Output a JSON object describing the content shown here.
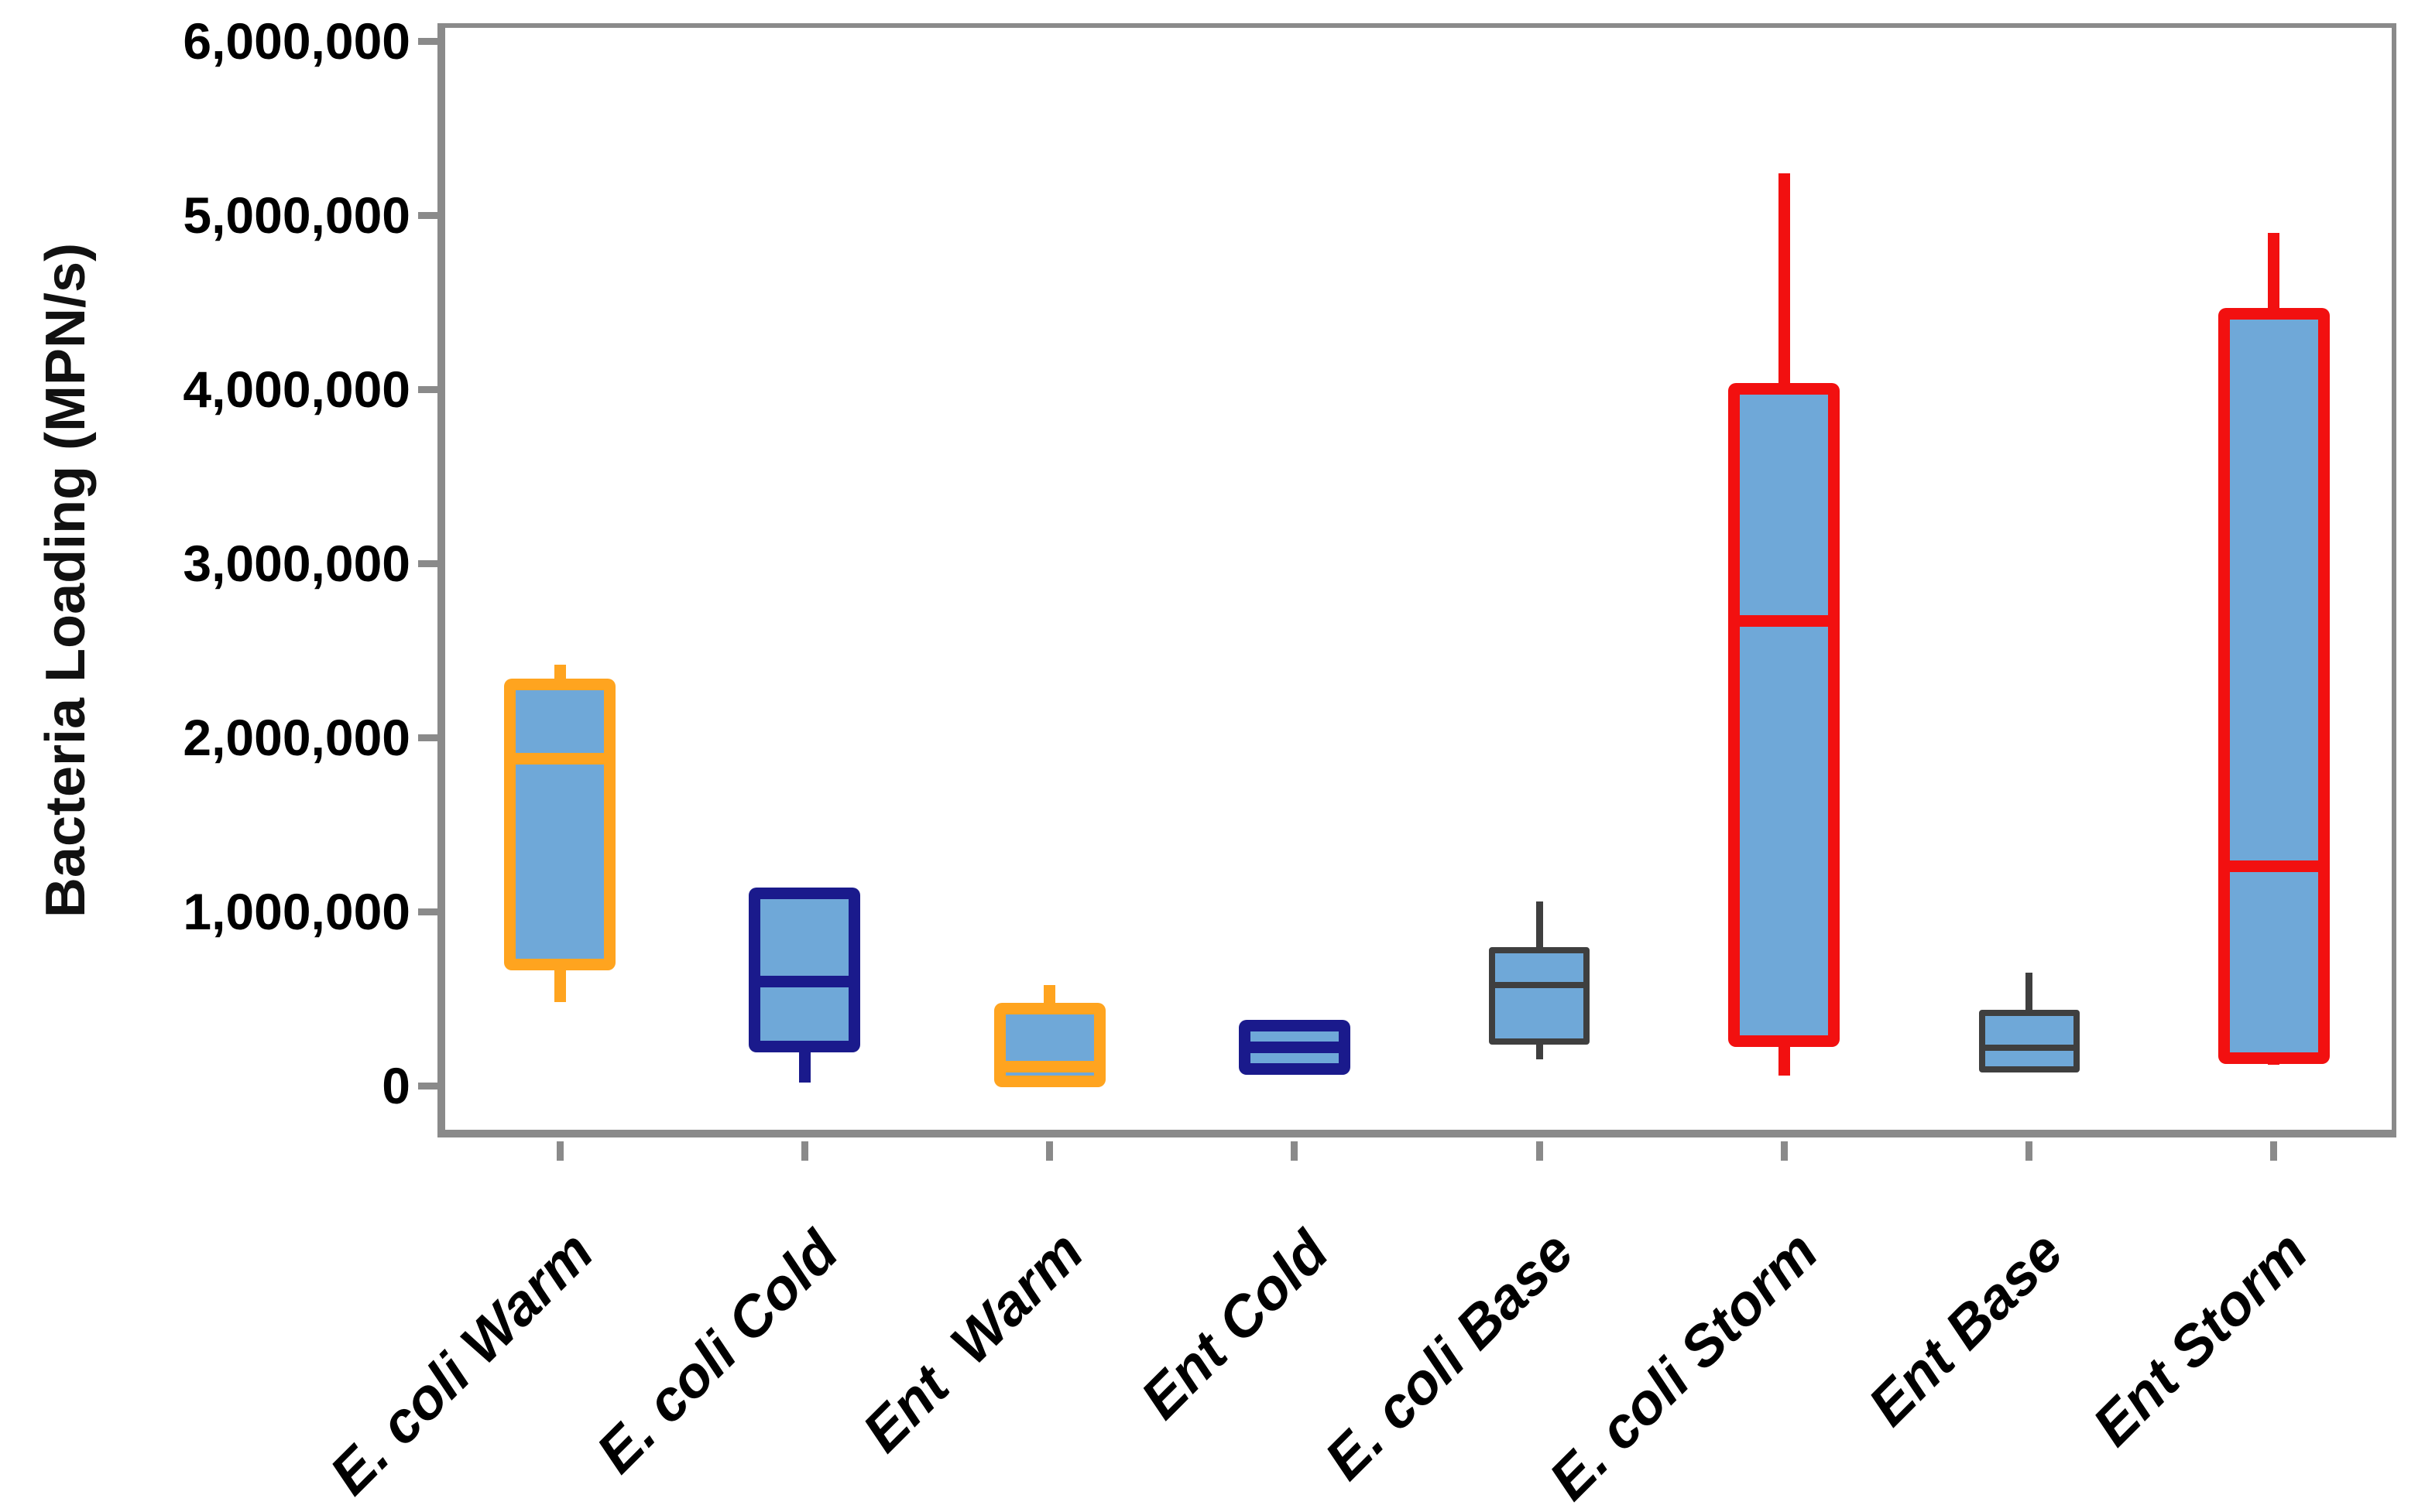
{
  "chart_data": {
    "type": "box",
    "title": "",
    "xlabel": "",
    "ylabel": "Bacteria Loading (MPN/s)",
    "ylim": [
      0,
      6000000
    ],
    "grid": false,
    "legend": null,
    "yticks": [
      {
        "value": 0,
        "label": "0"
      },
      {
        "value": 1000000,
        "label": "1,000,000"
      },
      {
        "value": 2000000,
        "label": "2,000,000"
      },
      {
        "value": 3000000,
        "label": "3,000,000"
      },
      {
        "value": 4000000,
        "label": "4,000,000"
      },
      {
        "value": 5000000,
        "label": "5,000,000"
      },
      {
        "value": 6000000,
        "label": "6,000,000"
      }
    ],
    "categories": [
      "E. coli Warm",
      "E. coli Cold",
      "Ent  Warm",
      "Ent Cold",
      "E. coli Base",
      "E. coli Storm",
      "Ent Base",
      "Ent Storm"
    ],
    "series": [
      {
        "label": "E. coli Warm",
        "group": "warm",
        "min": 480000,
        "q1": 730000,
        "median": 1880000,
        "q3": 2270000,
        "max": 2420000
      },
      {
        "label": "E. coli Cold",
        "group": "cold",
        "min": 20000,
        "q1": 260000,
        "median": 600000,
        "q3": 1070000,
        "max": 1070000
      },
      {
        "label": "Ent  Warm",
        "group": "warm",
        "min": 30000,
        "q1": 60000,
        "median": 110000,
        "q3": 410000,
        "max": 580000
      },
      {
        "label": "Ent Cold",
        "group": "cold",
        "min": 130000,
        "q1": 130000,
        "median": 220000,
        "q3": 310000,
        "max": 340000
      },
      {
        "label": "E. coli Base",
        "group": "base",
        "min": 150000,
        "q1": 270000,
        "median": 580000,
        "q3": 760000,
        "max": 1060000
      },
      {
        "label": "E. coli Storm",
        "group": "storm",
        "min": 60000,
        "q1": 290000,
        "median": 2670000,
        "q3": 3970000,
        "max": 5240000
      },
      {
        "label": "Ent Base",
        "group": "base",
        "min": 110000,
        "q1": 110000,
        "median": 220000,
        "q3": 400000,
        "max": 650000
      },
      {
        "label": "Ent Storm",
        "group": "storm",
        "min": 120000,
        "q1": 190000,
        "median": 1260000,
        "q3": 4400000,
        "max": 4900000
      }
    ],
    "colors": {
      "box_fill": "#6FA8D8",
      "warm": "#FFA41F",
      "cold": "#1A1A8C",
      "base": "#3F3F3F",
      "storm": "#F21010",
      "axis": "#8A8A8A",
      "text": "#000000"
    }
  }
}
